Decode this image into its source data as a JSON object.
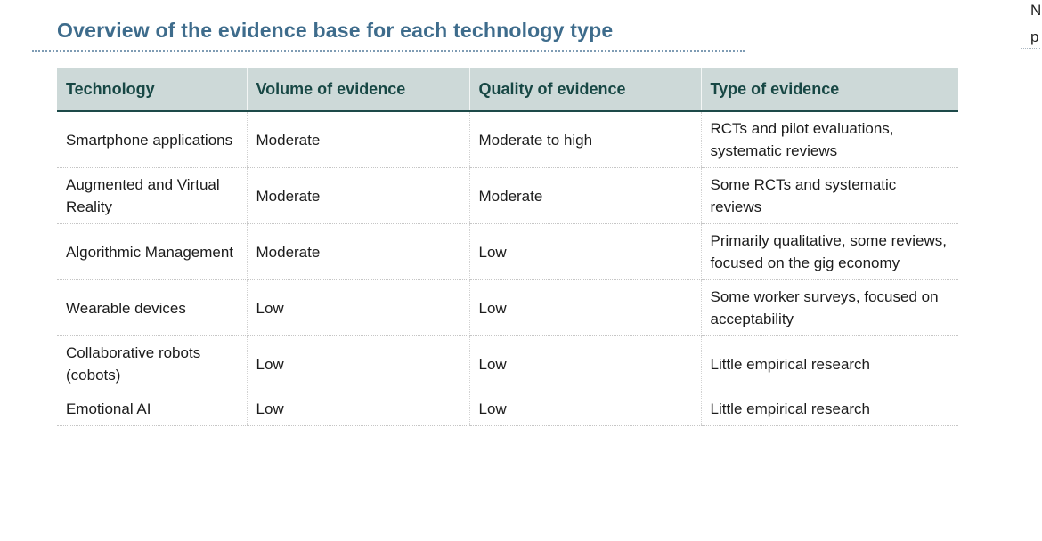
{
  "page": {
    "title": "Overview of the evidence base for each technology type",
    "edge_fragment": {
      "line1": "N",
      "line2": "p"
    }
  },
  "table": {
    "headers": {
      "technology": "Technology",
      "volume": "Volume of evidence",
      "quality": "Quality of evidence",
      "type": "Type of evidence"
    },
    "rows": [
      {
        "technology": "Smartphone applications",
        "volume": "Moderate",
        "quality": "Moderate to high",
        "type": "RCTs and pilot evaluations, systematic reviews"
      },
      {
        "technology": "Augmented and Virtual Reality",
        "volume": "Moderate",
        "quality": "Moderate",
        "type": "Some RCTs and systematic reviews"
      },
      {
        "technology": "Algorithmic Management",
        "volume": "Moderate",
        "quality": "Low",
        "type": "Primarily qualitative, some reviews, focused on the gig economy"
      },
      {
        "technology": "Wearable devices",
        "volume": "Low",
        "quality": "Low",
        "type": "Some worker surveys, focused on acceptability"
      },
      {
        "technology": "Collaborative robots (cobots)",
        "volume": "Low",
        "quality": "Low",
        "type": "Little empirical research"
      },
      {
        "technology": "Emotional AI",
        "volume": "Low",
        "quality": "Low",
        "type": "Little empirical research"
      }
    ]
  },
  "colors": {
    "title_text": "#3e6c8c",
    "title_underline_dots": "#7f9cb4",
    "header_background": "#cdd9d8",
    "header_text": "#174744",
    "header_bottom_border": "#1d4a49",
    "row_divider_dots": "#c6c6c6",
    "column_divider_dots": "#d2d2d2",
    "body_text": "#1c1c1c"
  }
}
